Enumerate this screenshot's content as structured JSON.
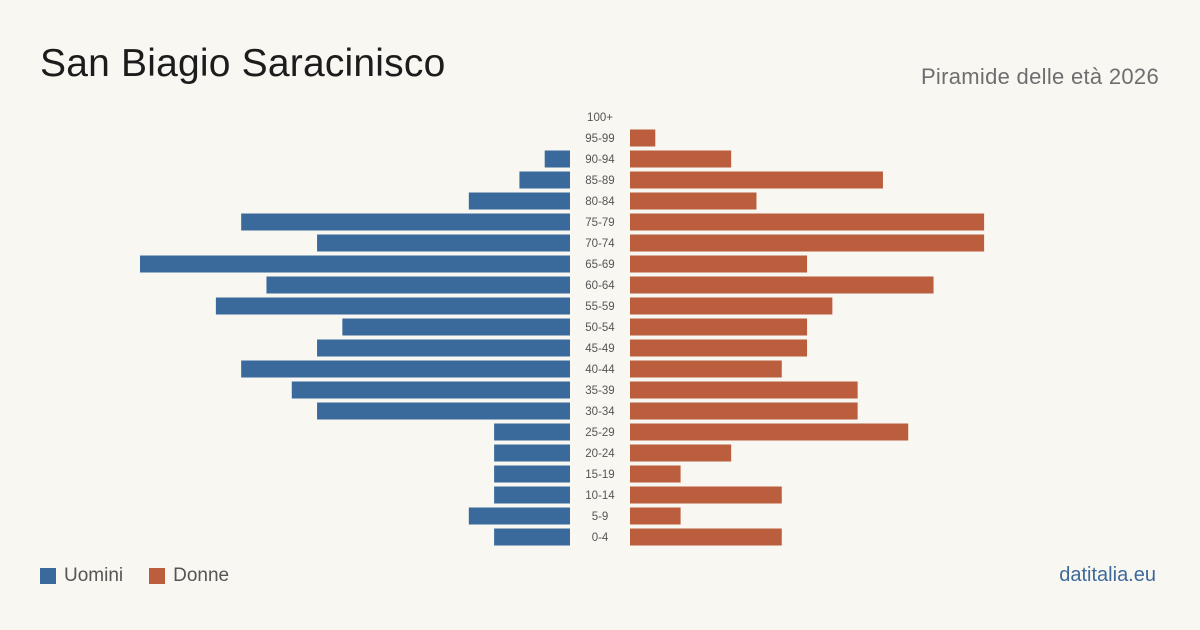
{
  "header": {
    "title": "San Biagio Saracinisco",
    "subtitle": "Piramide delle età 2026"
  },
  "legend": {
    "men_label": "Uomini",
    "women_label": "Donne"
  },
  "source": "datitalia.eu",
  "colors": {
    "men": "#3a6a9b",
    "women": "#bb5e3d",
    "background": "#f9f7f2"
  },
  "chart_data": {
    "type": "bar",
    "orientation": "horizontal-pyramid",
    "categories": [
      "100+",
      "95-99",
      "90-94",
      "85-89",
      "80-84",
      "75-79",
      "70-74",
      "65-69",
      "60-64",
      "55-59",
      "50-54",
      "45-49",
      "40-44",
      "35-39",
      "30-34",
      "25-29",
      "20-24",
      "15-19",
      "10-14",
      "5-9",
      "0-4"
    ],
    "series": [
      {
        "name": "Uomini",
        "values": [
          0,
          0,
          1,
          2,
          4,
          13,
          10,
          17,
          12,
          14,
          9,
          10,
          13,
          11,
          10,
          3,
          3,
          3,
          3,
          4,
          3
        ]
      },
      {
        "name": "Donne",
        "values": [
          0,
          1,
          4,
          10,
          5,
          14,
          14,
          7,
          12,
          8,
          7,
          7,
          6,
          9,
          9,
          11,
          4,
          2,
          6,
          2,
          6
        ]
      }
    ],
    "xlim": [
      0,
      17
    ],
    "grid": false,
    "legend_position": "bottom-left"
  }
}
